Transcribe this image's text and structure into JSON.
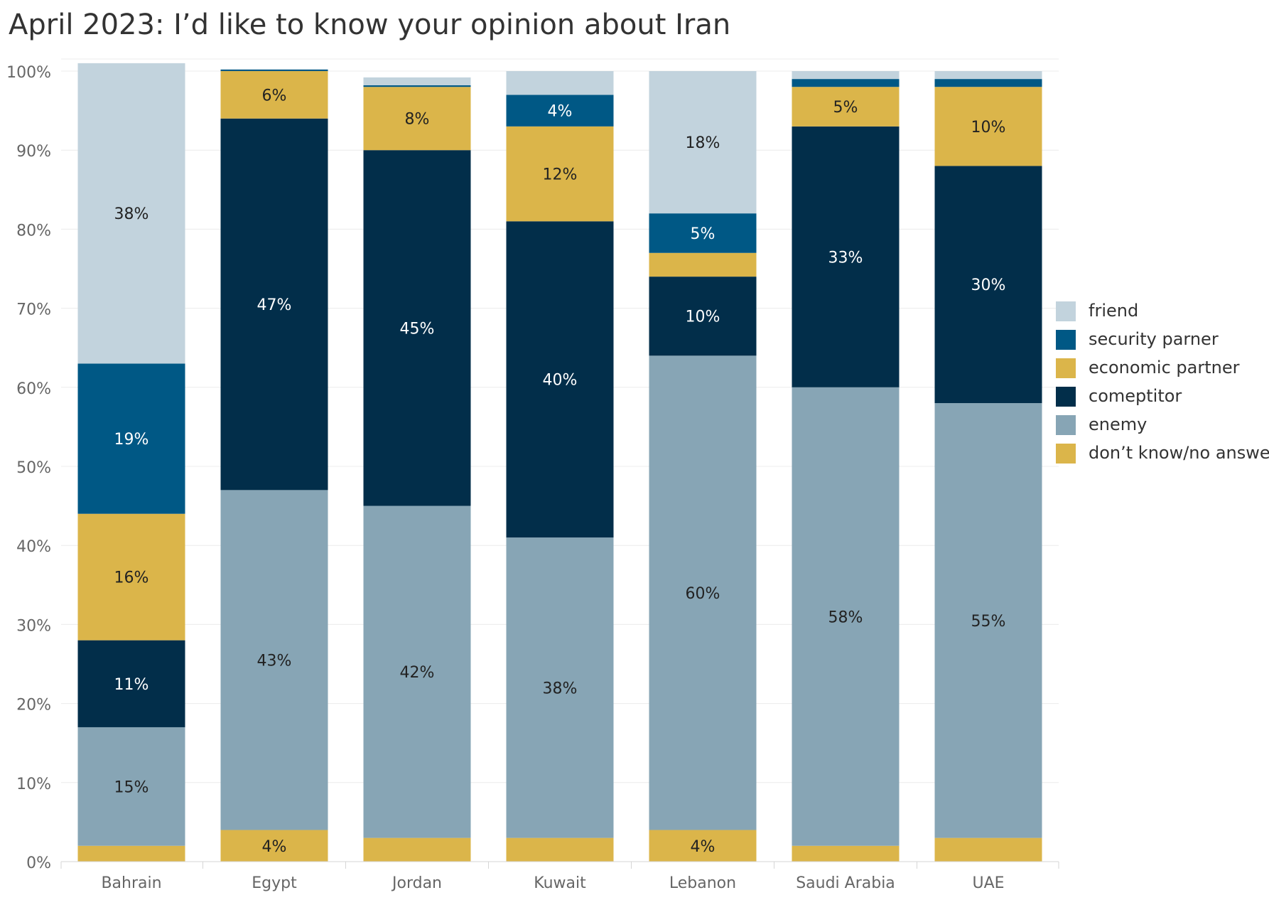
{
  "title": "April 2023: I’d like to know your opinion about Iran",
  "colors": {
    "friend": "#c2d3dd",
    "security_partner": "#005885",
    "economic_partner": "#dbb54a",
    "competitor": "#022e4a",
    "enemy": "#87a5b5",
    "dont_know": "#dbb54a",
    "grid": "#ececec",
    "axis_text": "#666666",
    "label_dark": "#222222",
    "label_light": "#ffffff"
  },
  "legend": [
    {
      "label": "friend",
      "color_key": "friend"
    },
    {
      "label": "security parner",
      "color_key": "security_partner"
    },
    {
      "label": "economic partner",
      "color_key": "economic_partner"
    },
    {
      "label": "comeptitor",
      "color_key": "competitor"
    },
    {
      "label": "enemy",
      "color_key": "enemy"
    },
    {
      "label": "don’t know/no answer",
      "color_key": "dont_know"
    }
  ],
  "chart_data": {
    "type": "bar",
    "stacked": true,
    "title": "April 2023: I’d like to know your opinion about Iran",
    "xlabel": "",
    "ylabel": "",
    "ylim": [
      0,
      100
    ],
    "yticks": [
      "0%",
      "10%",
      "20%",
      "30%",
      "40%",
      "50%",
      "60%",
      "70%",
      "80%",
      "90%",
      "100%"
    ],
    "grid": true,
    "legend_position": "right",
    "categories": [
      "Bahrain",
      "Egypt",
      "Jordan",
      "Kuwait",
      "Lebanon",
      "Saudi Arabia",
      "UAE"
    ],
    "series": [
      {
        "name": "don’t know/no answer",
        "color_key": "dont_know",
        "values": [
          2,
          4,
          3,
          3,
          4,
          2,
          3
        ],
        "labels": [
          "",
          "4%",
          "",
          "",
          "4%",
          "",
          ""
        ]
      },
      {
        "name": "enemy",
        "color_key": "enemy",
        "values": [
          15,
          43,
          42,
          38,
          60,
          58,
          55
        ],
        "labels": [
          "15%",
          "43%",
          "42%",
          "38%",
          "60%",
          "58%",
          "55%"
        ]
      },
      {
        "name": "comeptitor",
        "color_key": "competitor",
        "values": [
          11,
          47,
          45,
          40,
          10,
          33,
          30
        ],
        "labels": [
          "11%",
          "47%",
          "45%",
          "40%",
          "10%",
          "33%",
          "30%"
        ]
      },
      {
        "name": "economic partner",
        "color_key": "economic_partner",
        "values": [
          16,
          6,
          8,
          12,
          3,
          5,
          10
        ],
        "labels": [
          "16%",
          "6%",
          "8%",
          "12%",
          "",
          "5%",
          "10%"
        ]
      },
      {
        "name": "security parner",
        "color_key": "security_partner",
        "values": [
          19,
          0.2,
          0.2,
          4,
          5,
          1,
          1
        ],
        "labels": [
          "19%",
          "",
          "",
          "4%",
          "5%",
          "",
          ""
        ]
      },
      {
        "name": "friend",
        "color_key": "friend",
        "values": [
          38,
          0,
          1,
          3,
          18,
          1,
          1
        ],
        "labels": [
          "38%",
          "",
          "",
          "",
          "18%",
          "",
          ""
        ]
      }
    ]
  }
}
